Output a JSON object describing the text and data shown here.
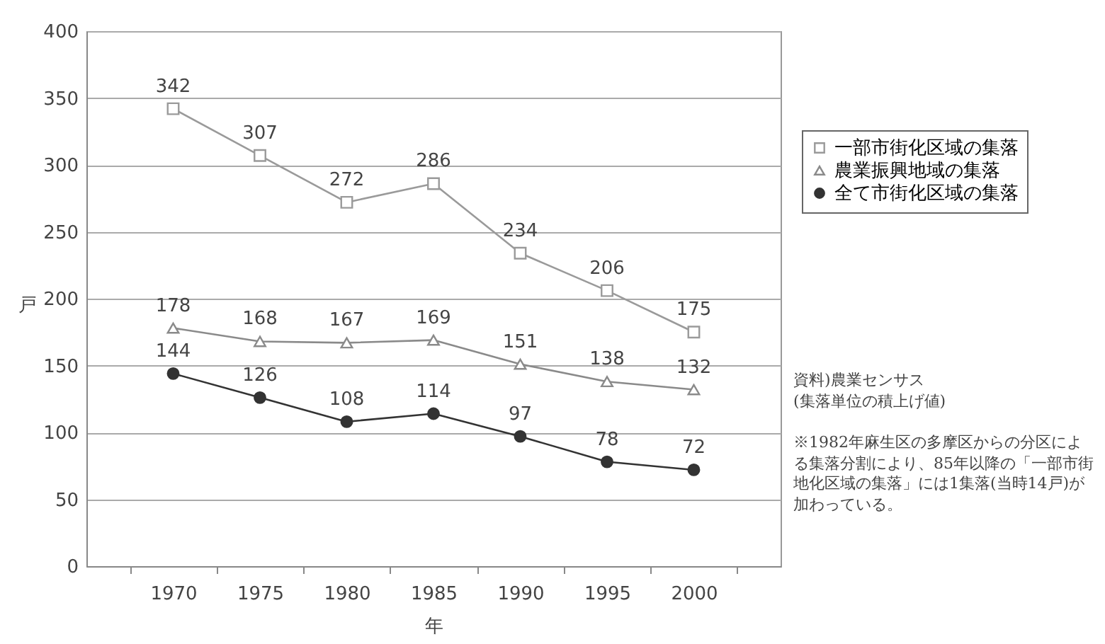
{
  "chart_data": {
    "type": "line",
    "xlabel": "年",
    "ylabel": "戸",
    "categories": [
      "1970",
      "1975",
      "1980",
      "1985",
      "1990",
      "1995",
      "2000"
    ],
    "series": [
      {
        "name": "一部市街化区域の集落",
        "color": "#9a9a9a",
        "marker": "square",
        "values": [
          342,
          307,
          272,
          286,
          234,
          206,
          175
        ]
      },
      {
        "name": "農業振興地域の集落",
        "color": "#8a8a8a",
        "marker": "triangle",
        "values": [
          178,
          168,
          167,
          169,
          151,
          138,
          132
        ]
      },
      {
        "name": "全て市街化区域の集落",
        "color": "#333333",
        "marker": "circle",
        "values": [
          144,
          126,
          108,
          114,
          97,
          78,
          72
        ]
      }
    ],
    "ylim": [
      0,
      400
    ],
    "yticks": [
      0,
      50,
      100,
      150,
      200,
      250,
      300,
      350,
      400
    ],
    "grid": "y",
    "legend": "right",
    "data_labels": true,
    "annotations": [
      "資料)農業センサス\n(集落単位の積上げ値)",
      "※1982年麻生区の多摩区からの分区による集落分割により、85年以降の「一部市街地化区域の集落」には1集落(当時14戸)が加わっている。"
    ]
  }
}
